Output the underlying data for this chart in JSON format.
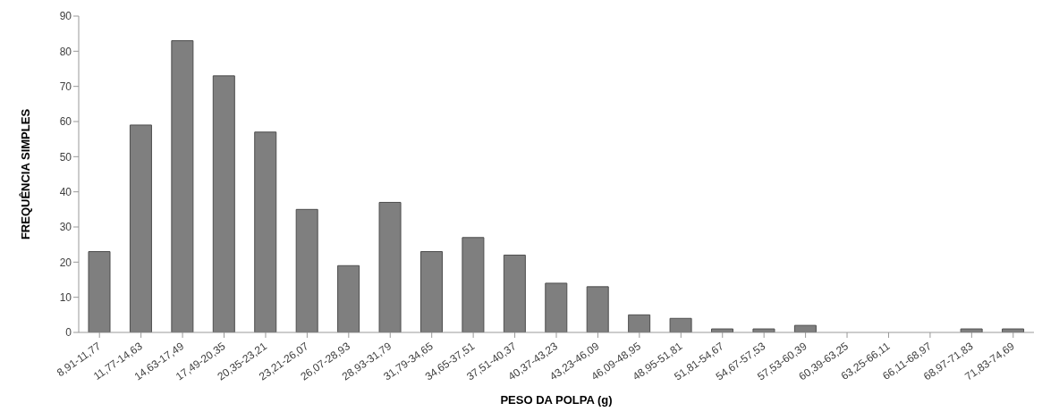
{
  "chart_data": {
    "type": "bar",
    "xlabel": "PESO DA POLPA  (g)",
    "ylabel": "FREQUÊNCIA SIMPLES",
    "categories": [
      "8,91-11,77",
      "11,77-14,63",
      "14,63-17,49",
      "17,49-20,35",
      "20,35-23,21",
      "23,21-26,07",
      "26,07-28,93",
      "28,93-31,79",
      "31,79-34,65",
      "34,65-37,51",
      "37,51-40,37",
      "40,37-43,23",
      "43,23-46,09",
      "46,09-48,95",
      "48,95-51,81",
      "51,81-54,67",
      "54,67-57,53",
      "57,53-60,39",
      "60,39-63,25",
      "63,25-66,11",
      "66,11-68,97",
      "68,97-71,83",
      "71,83-74,69"
    ],
    "values": [
      23,
      59,
      83,
      73,
      57,
      35,
      19,
      37,
      23,
      27,
      22,
      14,
      13,
      5,
      4,
      1,
      1,
      2,
      0,
      0,
      0,
      1,
      1
    ],
    "color": "#7f7f7f",
    "ylim": [
      0,
      90
    ],
    "yticks": [
      0,
      10,
      20,
      30,
      40,
      50,
      60,
      70,
      80,
      90
    ]
  }
}
